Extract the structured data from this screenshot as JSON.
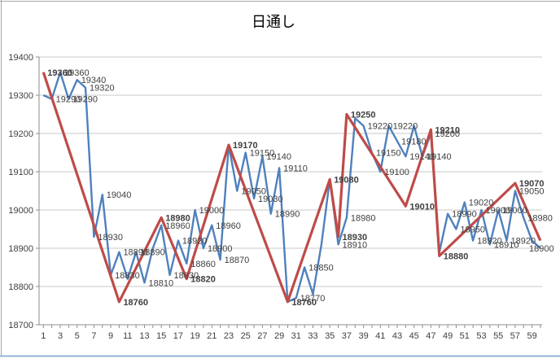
{
  "title": "日通し",
  "colors": {
    "blue_series": "#4F81BD",
    "red_series": "#BE4B48",
    "gridline": "#C9C9C9",
    "axis": "#8C8C8C",
    "tick_label": "#3F3F3F",
    "data_label": "#404040",
    "title_text": "#000000",
    "window_edge": "#A6A6A6",
    "window_bottom_edge": "#95B3D7"
  },
  "axes": {
    "y": {
      "min": 18700,
      "max": 19400,
      "step": 100,
      "tick_labels": [
        "19400",
        "19300",
        "19200",
        "19100",
        "19000",
        "18900",
        "18800",
        "18700"
      ]
    },
    "x": {
      "min": 1,
      "max": 60,
      "tick_labels": [
        "1",
        "3",
        "5",
        "7",
        "9",
        "11",
        "13",
        "15",
        "17",
        "19",
        "21",
        "23",
        "25",
        "27",
        "29",
        "31",
        "33",
        "35",
        "37",
        "39",
        "41",
        "43",
        "45",
        "47",
        "49",
        "51",
        "53",
        "55",
        "57",
        "59"
      ]
    }
  },
  "chart_data": {
    "type": "line",
    "title": "日通し",
    "xlabel": "",
    "ylabel": "",
    "ylim": [
      18700,
      19400
    ],
    "grid": true,
    "legend": "none",
    "series": [
      {
        "name": "series1-blue",
        "points": [
          {
            "x": 1,
            "y": 19300,
            "label": ""
          },
          {
            "x": 2,
            "y": 19290,
            "label": "19290"
          },
          {
            "x": 3,
            "y": 19360,
            "label": "19360"
          },
          {
            "x": 4,
            "y": 19290,
            "label": "19290"
          },
          {
            "x": 5,
            "y": 19340,
            "label": "19340"
          },
          {
            "x": 6,
            "y": 19320,
            "label": "19320"
          },
          {
            "x": 7,
            "y": 18930,
            "label": "18930"
          },
          {
            "x": 8,
            "y": 19040,
            "label": "19040"
          },
          {
            "x": 9,
            "y": 18830,
            "label": "18830"
          },
          {
            "x": 10,
            "y": 18890,
            "label": "18890"
          },
          {
            "x": 11,
            "y": 18820,
            "label": ""
          },
          {
            "x": 12,
            "y": 18890,
            "label": "18890"
          },
          {
            "x": 13,
            "y": 18810,
            "label": "18810"
          },
          {
            "x": 14,
            "y": 18900,
            "label": ""
          },
          {
            "x": 15,
            "y": 18960,
            "label": "18960"
          },
          {
            "x": 16,
            "y": 18830,
            "label": "18830"
          },
          {
            "x": 17,
            "y": 18920,
            "label": "18920"
          },
          {
            "x": 18,
            "y": 18860,
            "label": "18860"
          },
          {
            "x": 19,
            "y": 19000,
            "label": "19000"
          },
          {
            "x": 20,
            "y": 18900,
            "label": "18900"
          },
          {
            "x": 21,
            "y": 18960,
            "label": "18960"
          },
          {
            "x": 22,
            "y": 18870,
            "label": "18870"
          },
          {
            "x": 23,
            "y": 19170,
            "label": ""
          },
          {
            "x": 24,
            "y": 19050,
            "label": "19050"
          },
          {
            "x": 25,
            "y": 19150,
            "label": "19150"
          },
          {
            "x": 26,
            "y": 19030,
            "label": "19030"
          },
          {
            "x": 27,
            "y": 19140,
            "label": "19140"
          },
          {
            "x": 28,
            "y": 18990,
            "label": "18990"
          },
          {
            "x": 29,
            "y": 19110,
            "label": "19110"
          },
          {
            "x": 30,
            "y": 18760,
            "label": ""
          },
          {
            "x": 31,
            "y": 18770,
            "label": "18770"
          },
          {
            "x": 32,
            "y": 18850,
            "label": "18850"
          },
          {
            "x": 33,
            "y": 18780,
            "label": ""
          },
          {
            "x": 34,
            "y": 18910,
            "label": ""
          },
          {
            "x": 35,
            "y": 19080,
            "label": ""
          },
          {
            "x": 36,
            "y": 18910,
            "label": "18910"
          },
          {
            "x": 37,
            "y": 18980,
            "label": "18980"
          },
          {
            "x": 38,
            "y": 19240,
            "label": ""
          },
          {
            "x": 39,
            "y": 19220,
            "label": "19220"
          },
          {
            "x": 40,
            "y": 19150,
            "label": "19150"
          },
          {
            "x": 41,
            "y": 19100,
            "label": "19100"
          },
          {
            "x": 42,
            "y": 19220,
            "label": "19220"
          },
          {
            "x": 43,
            "y": 19180,
            "label": "19180"
          },
          {
            "x": 44,
            "y": 19140,
            "label": "19140"
          },
          {
            "x": 45,
            "y": 19220,
            "label": ""
          },
          {
            "x": 46,
            "y": 19140,
            "label": "19140"
          },
          {
            "x": 47,
            "y": 19200,
            "label": "19200"
          },
          {
            "x": 48,
            "y": 18890,
            "label": ""
          },
          {
            "x": 49,
            "y": 18990,
            "label": "18990"
          },
          {
            "x": 50,
            "y": 18950,
            "label": "18950"
          },
          {
            "x": 51,
            "y": 19020,
            "label": "19020"
          },
          {
            "x": 52,
            "y": 18920,
            "label": "18920"
          },
          {
            "x": 53,
            "y": 19000,
            "label": "19000"
          },
          {
            "x": 54,
            "y": 18910,
            "label": "18910"
          },
          {
            "x": 55,
            "y": 19000,
            "label": "19000"
          },
          {
            "x": 56,
            "y": 18920,
            "label": "18920"
          },
          {
            "x": 57,
            "y": 19050,
            "label": "19050"
          },
          {
            "x": 58,
            "y": 18980,
            "label": "18980"
          },
          {
            "x": 59,
            "y": 18920,
            "label": ""
          },
          {
            "x": 60,
            "y": 18900,
            "label": "18900"
          }
        ]
      },
      {
        "name": "series2-red",
        "points": [
          {
            "x": 1,
            "y": 19360,
            "label": "19360"
          },
          {
            "x": 10,
            "y": 18760,
            "label": "18760"
          },
          {
            "x": 15,
            "y": 18980,
            "label": "18980"
          },
          {
            "x": 18,
            "y": 18820,
            "label": "18820"
          },
          {
            "x": 23,
            "y": 19170,
            "label": "19170"
          },
          {
            "x": 30,
            "y": 18760,
            "label": "18760"
          },
          {
            "x": 35,
            "y": 19080,
            "label": "19080"
          },
          {
            "x": 36,
            "y": 18930,
            "label": "18930"
          },
          {
            "x": 37,
            "y": 19250,
            "label": "19250"
          },
          {
            "x": 44,
            "y": 19010,
            "label": "19010"
          },
          {
            "x": 47,
            "y": 19210,
            "label": "19210"
          },
          {
            "x": 48,
            "y": 18880,
            "label": "18880"
          },
          {
            "x": 57,
            "y": 19070,
            "label": "19070"
          },
          {
            "x": 60,
            "y": 18920,
            "label": ""
          }
        ]
      }
    ]
  }
}
